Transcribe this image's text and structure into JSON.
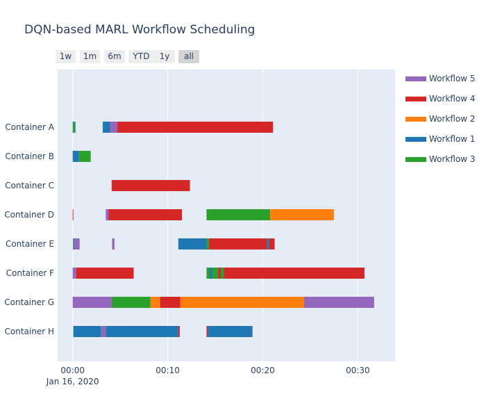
{
  "title": "DQN-based MARL Workflow Scheduling",
  "range_buttons": [
    {
      "label": "1w",
      "active": false
    },
    {
      "label": "1m",
      "active": false
    },
    {
      "label": "6m",
      "active": false
    },
    {
      "label": "YTD",
      "active": false
    },
    {
      "label": "1y",
      "active": false
    },
    {
      "label": "all",
      "active": true
    }
  ],
  "legend": [
    {
      "name": "Workflow 5",
      "color": "#9467bd"
    },
    {
      "name": "Workflow 4",
      "color": "#d62728"
    },
    {
      "name": "Workflow 2",
      "color": "#ff7f0e"
    },
    {
      "name": "Workflow 1",
      "color": "#1f77b4"
    },
    {
      "name": "Workflow 3",
      "color": "#2ca02c"
    }
  ],
  "chart_data": {
    "type": "gantt",
    "title": "DQN-based MARL Workflow Scheduling",
    "x_axis": {
      "type": "date",
      "range_seconds": [
        -95,
        2035
      ],
      "ticks": [
        {
          "seconds": 0,
          "label": "00:00",
          "sublabel": "Jan 16, 2020"
        },
        {
          "seconds": 600,
          "label": "00:10",
          "sublabel": ""
        },
        {
          "seconds": 1200,
          "label": "00:20",
          "sublabel": ""
        },
        {
          "seconds": 1800,
          "label": "00:30",
          "sublabel": ""
        }
      ]
    },
    "categories": [
      "Container A",
      "Container B",
      "Container C",
      "Container D",
      "Container E",
      "Container F",
      "Container G",
      "Container H"
    ],
    "colors": {
      "Workflow 1": "#1f77b4",
      "Workflow 2": "#ff7f0e",
      "Workflow 3": "#2ca02c",
      "Workflow 4": "#d62728",
      "Workflow 5": "#9467bd"
    },
    "tasks": [
      {
        "container": "Container A",
        "workflow": "Workflow 3",
        "start": 0,
        "end": 13
      },
      {
        "container": "Container A",
        "workflow": "Workflow 1",
        "start": 13,
        "end": 18
      },
      {
        "container": "Container A",
        "workflow": "Workflow 1",
        "start": 190,
        "end": 236
      },
      {
        "container": "Container A",
        "workflow": "Workflow 5",
        "start": 236,
        "end": 282
      },
      {
        "container": "Container A",
        "workflow": "Workflow 4",
        "start": 282,
        "end": 1265
      },
      {
        "container": "Container B",
        "workflow": "Workflow 1",
        "start": 0,
        "end": 40
      },
      {
        "container": "Container B",
        "workflow": "Workflow 3",
        "start": 40,
        "end": 114
      },
      {
        "container": "Container C",
        "workflow": "Workflow 4",
        "start": 246,
        "end": 740
      },
      {
        "container": "Container D",
        "workflow": "Workflow 4",
        "start": 0,
        "end": 4
      },
      {
        "container": "Container D",
        "workflow": "Workflow 5",
        "start": 209,
        "end": 227
      },
      {
        "container": "Container D",
        "workflow": "Workflow 4",
        "start": 227,
        "end": 690
      },
      {
        "container": "Container D",
        "workflow": "Workflow 3",
        "start": 845,
        "end": 1246
      },
      {
        "container": "Container D",
        "workflow": "Workflow 2",
        "start": 1246,
        "end": 1649
      },
      {
        "container": "Container E",
        "workflow": "Workflow 1",
        "start": 2,
        "end": 9
      },
      {
        "container": "Container E",
        "workflow": "Workflow 5",
        "start": 9,
        "end": 44
      },
      {
        "container": "Container E",
        "workflow": "Workflow 5",
        "start": 249,
        "end": 264
      },
      {
        "container": "Container E",
        "workflow": "Workflow 1",
        "start": 667,
        "end": 845
      },
      {
        "container": "Container E",
        "workflow": "Workflow 3",
        "start": 845,
        "end": 860
      },
      {
        "container": "Container E",
        "workflow": "Workflow 4",
        "start": 860,
        "end": 1226
      },
      {
        "container": "Container E",
        "workflow": "Workflow 1",
        "start": 1226,
        "end": 1240
      },
      {
        "container": "Container E",
        "workflow": "Workflow 4",
        "start": 1240,
        "end": 1275
      },
      {
        "container": "Container F",
        "workflow": "Workflow 5",
        "start": 0,
        "end": 22
      },
      {
        "container": "Container F",
        "workflow": "Workflow 4",
        "start": 22,
        "end": 385
      },
      {
        "container": "Container F",
        "workflow": "Workflow 3",
        "start": 845,
        "end": 865
      },
      {
        "container": "Container F",
        "workflow": "Workflow 1",
        "start": 865,
        "end": 880
      },
      {
        "container": "Container F",
        "workflow": "Workflow 3",
        "start": 880,
        "end": 918
      },
      {
        "container": "Container F",
        "workflow": "Workflow 4",
        "start": 918,
        "end": 935
      },
      {
        "container": "Container F",
        "workflow": "Workflow 3",
        "start": 935,
        "end": 955
      },
      {
        "container": "Container F",
        "workflow": "Workflow 4",
        "start": 955,
        "end": 1842
      },
      {
        "container": "Container G",
        "workflow": "Workflow 5",
        "start": 0,
        "end": 246
      },
      {
        "container": "Container G",
        "workflow": "Workflow 3",
        "start": 246,
        "end": 491
      },
      {
        "container": "Container G",
        "workflow": "Workflow 2",
        "start": 491,
        "end": 552
      },
      {
        "container": "Container G",
        "workflow": "Workflow 4",
        "start": 552,
        "end": 680
      },
      {
        "container": "Container G",
        "workflow": "Workflow 2",
        "start": 680,
        "end": 1461
      },
      {
        "container": "Container G",
        "workflow": "Workflow 5",
        "start": 1461,
        "end": 1903
      },
      {
        "container": "Container H",
        "workflow": "Workflow 1",
        "start": 4,
        "end": 180
      },
      {
        "container": "Container H",
        "workflow": "Workflow 5",
        "start": 180,
        "end": 209
      },
      {
        "container": "Container H",
        "workflow": "Workflow 1",
        "start": 209,
        "end": 667
      },
      {
        "container": "Container H",
        "workflow": "Workflow 4",
        "start": 667,
        "end": 676
      },
      {
        "container": "Container H",
        "workflow": "Workflow 4",
        "start": 845,
        "end": 853
      },
      {
        "container": "Container H",
        "workflow": "Workflow 1",
        "start": 853,
        "end": 1135
      }
    ]
  }
}
